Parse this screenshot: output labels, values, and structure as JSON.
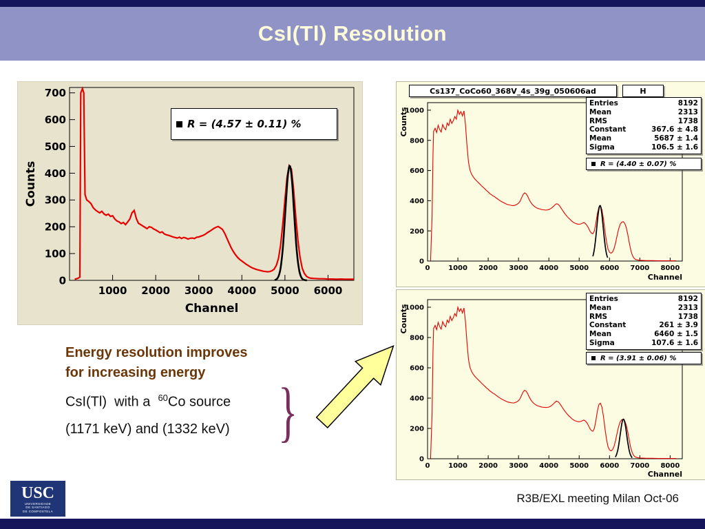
{
  "slide": {
    "title": "CsI(Tl) Resolution",
    "footer": "R3B/EXL meeting Milan Oct-06"
  },
  "colors": {
    "header_band": "#9093C6",
    "top_bottom_bars": "#15155C",
    "title_text": "#FEFCD9",
    "spectrum_red": "#E60000",
    "fit_black": "#000000",
    "left_canvas_beige": "#E7E3CC",
    "right_canvas_yellow": "#FCFCE2",
    "heading_brown": "#6B3708",
    "brace_plum": "#7A2E5B",
    "arrow_fill": "#FFFF9C"
  },
  "annotation": {
    "heading_line1": "Energy resolution improves",
    "heading_line2": "for increasing energy",
    "source_line_pre": "CsI(Tl)  with a  ",
    "source_sup": "60",
    "source_line_post": "Co source",
    "energy_line": "(1171 keV) and (1332 keV)",
    "brace": "}"
  },
  "logo": {
    "acronym": "USC",
    "lines": [
      "UNIVERSIDADE",
      "DE SANTIAGO",
      "DE COMPOSTELA"
    ]
  },
  "chart_data": [
    {
      "id": "left",
      "type": "line",
      "title": "",
      "xlabel": "Channel",
      "ylabel": "Counts",
      "xlim": [
        0,
        6600
      ],
      "ylim": [
        0,
        720
      ],
      "xticks": [
        1000,
        2000,
        3000,
        4000,
        5000,
        6000
      ],
      "yticks": [
        0,
        100,
        200,
        300,
        400,
        500,
        600,
        700
      ],
      "legend": "R = (4.57 ± 0.11) %",
      "series_color": "#E60000",
      "fit": {
        "constant": 428,
        "mean": 5110,
        "sigma": 100,
        "range": [
          4760,
          5510
        ]
      },
      "points_ref": "cs137_single_spectrum"
    },
    {
      "id": "rtop",
      "type": "line",
      "title": "Cs137_CoCo60_368V_4s_39g_050606ad",
      "title_tag": "H",
      "xlabel": "Channel",
      "ylabel": "Counts",
      "xlim": [
        0,
        8400
      ],
      "ylim": [
        0,
        1050
      ],
      "xticks": [
        0,
        1000,
        2000,
        3000,
        4000,
        5000,
        6000,
        7000,
        8000
      ],
      "yticks": [
        0,
        200,
        400,
        600,
        800,
        1000
      ],
      "stats": [
        [
          "Entries",
          "8192"
        ],
        [
          "Mean",
          "2313"
        ],
        [
          "RMS",
          "1738"
        ],
        [
          "Constant",
          "367.6 ± 4.8"
        ],
        [
          "Mean",
          "5687 ± 1.4"
        ],
        [
          "Sigma",
          "106.5 ± 1.6"
        ]
      ],
      "legend": "R = (4.40 ± 0.07) %",
      "series_color": "#E60000",
      "fit": {
        "constant": 367.6,
        "mean": 5687,
        "sigma": 106.5,
        "range": [
          5450,
          5940
        ]
      },
      "points_ref": "cs137_co60_spectrum"
    },
    {
      "id": "rbottom",
      "type": "line",
      "title": "",
      "xlabel": "Channel",
      "ylabel": "Counts",
      "xlim": [
        0,
        8400
      ],
      "ylim": [
        0,
        1050
      ],
      "xticks": [
        0,
        1000,
        2000,
        3000,
        4000,
        5000,
        6000,
        7000,
        8000
      ],
      "yticks": [
        0,
        200,
        400,
        600,
        800,
        1000
      ],
      "stats": [
        [
          "Entries",
          "8192"
        ],
        [
          "Mean",
          "2313"
        ],
        [
          "RMS",
          "1738"
        ],
        [
          "Constant",
          "261 ± 3.9"
        ],
        [
          "Mean",
          "6460 ± 1.5"
        ],
        [
          "Sigma",
          "107.6 ± 1.6"
        ]
      ],
      "legend": "R = (3.91 ± 0.06) %",
      "series_color": "#E60000",
      "fit": {
        "constant": 261,
        "mean": 6460,
        "sigma": 107.6,
        "range": [
          6190,
          6750
        ]
      },
      "points_ref": "cs137_co60_spectrum"
    }
  ],
  "spectra": {
    "cs137_single_spectrum": [
      [
        120,
        4
      ],
      [
        200,
        8
      ],
      [
        240,
        12
      ],
      [
        260,
        700
      ],
      [
        300,
        716
      ],
      [
        330,
        700
      ],
      [
        360,
        320
      ],
      [
        400,
        300
      ],
      [
        450,
        294
      ],
      [
        500,
        286
      ],
      [
        550,
        271
      ],
      [
        600,
        263
      ],
      [
        650,
        257
      ],
      [
        700,
        252
      ],
      [
        750,
        258
      ],
      [
        800,
        248
      ],
      [
        850,
        243
      ],
      [
        900,
        247
      ],
      [
        950,
        239
      ],
      [
        1000,
        241
      ],
      [
        1050,
        229
      ],
      [
        1100,
        222
      ],
      [
        1150,
        218
      ],
      [
        1200,
        212
      ],
      [
        1250,
        216
      ],
      [
        1300,
        208
      ],
      [
        1350,
        218
      ],
      [
        1400,
        229
      ],
      [
        1450,
        252
      ],
      [
        1500,
        261
      ],
      [
        1550,
        231
      ],
      [
        1600,
        213
      ],
      [
        1650,
        208
      ],
      [
        1700,
        203
      ],
      [
        1750,
        198
      ],
      [
        1800,
        193
      ],
      [
        1850,
        200
      ],
      [
        1900,
        198
      ],
      [
        1950,
        192
      ],
      [
        2000,
        188
      ],
      [
        2050,
        183
      ],
      [
        2100,
        178
      ],
      [
        2150,
        181
      ],
      [
        2200,
        173
      ],
      [
        2250,
        170
      ],
      [
        2300,
        168
      ],
      [
        2350,
        165
      ],
      [
        2400,
        162
      ],
      [
        2450,
        160
      ],
      [
        2500,
        158
      ],
      [
        2550,
        161
      ],
      [
        2600,
        156
      ],
      [
        2650,
        160
      ],
      [
        2700,
        158
      ],
      [
        2750,
        154
      ],
      [
        2800,
        157
      ],
      [
        2850,
        158
      ],
      [
        2900,
        156
      ],
      [
        2950,
        161
      ],
      [
        3000,
        162
      ],
      [
        3050,
        165
      ],
      [
        3100,
        168
      ],
      [
        3150,
        172
      ],
      [
        3200,
        178
      ],
      [
        3250,
        183
      ],
      [
        3300,
        188
      ],
      [
        3350,
        194
      ],
      [
        3400,
        198
      ],
      [
        3450,
        201
      ],
      [
        3500,
        196
      ],
      [
        3550,
        190
      ],
      [
        3600,
        176
      ],
      [
        3650,
        158
      ],
      [
        3700,
        140
      ],
      [
        3750,
        122
      ],
      [
        3800,
        108
      ],
      [
        3850,
        96
      ],
      [
        3900,
        86
      ],
      [
        3950,
        78
      ],
      [
        4000,
        72
      ],
      [
        4050,
        66
      ],
      [
        4100,
        60
      ],
      [
        4150,
        55
      ],
      [
        4200,
        50
      ],
      [
        4250,
        46
      ],
      [
        4300,
        43
      ],
      [
        4350,
        40
      ],
      [
        4400,
        38
      ],
      [
        4450,
        36
      ],
      [
        4500,
        34
      ],
      [
        4550,
        33
      ],
      [
        4600,
        32
      ],
      [
        4650,
        33
      ],
      [
        4700,
        36
      ],
      [
        4750,
        42
      ],
      [
        4800,
        56
      ],
      [
        4850,
        82
      ],
      [
        4900,
        132
      ],
      [
        4950,
        212
      ],
      [
        5000,
        302
      ],
      [
        5050,
        386
      ],
      [
        5100,
        428
      ],
      [
        5150,
        415
      ],
      [
        5200,
        340
      ],
      [
        5250,
        240
      ],
      [
        5300,
        150
      ],
      [
        5350,
        86
      ],
      [
        5400,
        46
      ],
      [
        5450,
        26
      ],
      [
        5500,
        15
      ],
      [
        5550,
        10
      ],
      [
        5600,
        8
      ],
      [
        5700,
        7
      ],
      [
        5800,
        6
      ],
      [
        5900,
        6
      ],
      [
        6000,
        5
      ],
      [
        6100,
        5
      ],
      [
        6200,
        4
      ],
      [
        6300,
        5
      ],
      [
        6400,
        4
      ],
      [
        6500,
        4
      ],
      [
        6600,
        4
      ]
    ],
    "cs137_co60_spectrum": [
      [
        100,
        2
      ],
      [
        150,
        300
      ],
      [
        180,
        700
      ],
      [
        200,
        860
      ],
      [
        250,
        880
      ],
      [
        300,
        852
      ],
      [
        350,
        900
      ],
      [
        400,
        872
      ],
      [
        450,
        855
      ],
      [
        500,
        905
      ],
      [
        550,
        882
      ],
      [
        600,
        870
      ],
      [
        650,
        915
      ],
      [
        700,
        898
      ],
      [
        750,
        940
      ],
      [
        800,
        912
      ],
      [
        850,
        930
      ],
      [
        900,
        958
      ],
      [
        950,
        940
      ],
      [
        1000,
        1000
      ],
      [
        1050,
        972
      ],
      [
        1100,
        990
      ],
      [
        1150,
        962
      ],
      [
        1200,
        995
      ],
      [
        1250,
        905
      ],
      [
        1300,
        765
      ],
      [
        1350,
        655
      ],
      [
        1400,
        602
      ],
      [
        1450,
        576
      ],
      [
        1500,
        560
      ],
      [
        1550,
        546
      ],
      [
        1600,
        535
      ],
      [
        1650,
        525
      ],
      [
        1700,
        515
      ],
      [
        1750,
        505
      ],
      [
        1800,
        495
      ],
      [
        1850,
        486
      ],
      [
        1900,
        476
      ],
      [
        1950,
        466
      ],
      [
        2000,
        458
      ],
      [
        2050,
        448
      ],
      [
        2100,
        441
      ],
      [
        2150,
        433
      ],
      [
        2200,
        428
      ],
      [
        2250,
        420
      ],
      [
        2300,
        413
      ],
      [
        2350,
        406
      ],
      [
        2400,
        399
      ],
      [
        2450,
        393
      ],
      [
        2500,
        388
      ],
      [
        2550,
        383
      ],
      [
        2600,
        378
      ],
      [
        2650,
        374
      ],
      [
        2700,
        372
      ],
      [
        2750,
        370
      ],
      [
        2800,
        368
      ],
      [
        2850,
        368
      ],
      [
        2900,
        371
      ],
      [
        2950,
        376
      ],
      [
        3000,
        383
      ],
      [
        3050,
        396
      ],
      [
        3100,
        418
      ],
      [
        3150,
        441
      ],
      [
        3200,
        452
      ],
      [
        3250,
        446
      ],
      [
        3300,
        430
      ],
      [
        3350,
        408
      ],
      [
        3400,
        390
      ],
      [
        3450,
        376
      ],
      [
        3500,
        366
      ],
      [
        3550,
        358
      ],
      [
        3600,
        352
      ],
      [
        3650,
        348
      ],
      [
        3700,
        345
      ],
      [
        3750,
        342
      ],
      [
        3800,
        340
      ],
      [
        3850,
        339
      ],
      [
        3900,
        338
      ],
      [
        3950,
        339
      ],
      [
        4000,
        341
      ],
      [
        4050,
        346
      ],
      [
        4100,
        353
      ],
      [
        4150,
        362
      ],
      [
        4200,
        372
      ],
      [
        4250,
        380
      ],
      [
        4300,
        377
      ],
      [
        4350,
        367
      ],
      [
        4400,
        352
      ],
      [
        4450,
        337
      ],
      [
        4500,
        322
      ],
      [
        4550,
        308
      ],
      [
        4600,
        296
      ],
      [
        4650,
        285
      ],
      [
        4700,
        276
      ],
      [
        4750,
        266
      ],
      [
        4800,
        258
      ],
      [
        4850,
        252
      ],
      [
        4900,
        248
      ],
      [
        4950,
        245
      ],
      [
        5000,
        244
      ],
      [
        5050,
        246
      ],
      [
        5100,
        250
      ],
      [
        5150,
        255
      ],
      [
        5200,
        250
      ],
      [
        5250,
        238
      ],
      [
        5300,
        222
      ],
      [
        5350,
        200
      ],
      [
        5400,
        186
      ],
      [
        5450,
        181
      ],
      [
        5500,
        200
      ],
      [
        5550,
        252
      ],
      [
        5600,
        315
      ],
      [
        5650,
        358
      ],
      [
        5700,
        367
      ],
      [
        5750,
        340
      ],
      [
        5800,
        280
      ],
      [
        5850,
        200
      ],
      [
        5900,
        130
      ],
      [
        5950,
        80
      ],
      [
        6000,
        58
      ],
      [
        6050,
        52
      ],
      [
        6100,
        60
      ],
      [
        6150,
        82
      ],
      [
        6200,
        120
      ],
      [
        6250,
        168
      ],
      [
        6300,
        212
      ],
      [
        6350,
        243
      ],
      [
        6400,
        257
      ],
      [
        6450,
        261
      ],
      [
        6500,
        251
      ],
      [
        6550,
        224
      ],
      [
        6600,
        180
      ],
      [
        6650,
        124
      ],
      [
        6700,
        74
      ],
      [
        6750,
        40
      ],
      [
        6800,
        21
      ],
      [
        6850,
        12
      ],
      [
        6900,
        8
      ],
      [
        7000,
        5
      ],
      [
        7100,
        4
      ],
      [
        7200,
        3
      ],
      [
        7400,
        3
      ],
      [
        7600,
        2
      ],
      [
        7800,
        2
      ],
      [
        8000,
        2
      ],
      [
        8200,
        2
      ]
    ]
  }
}
